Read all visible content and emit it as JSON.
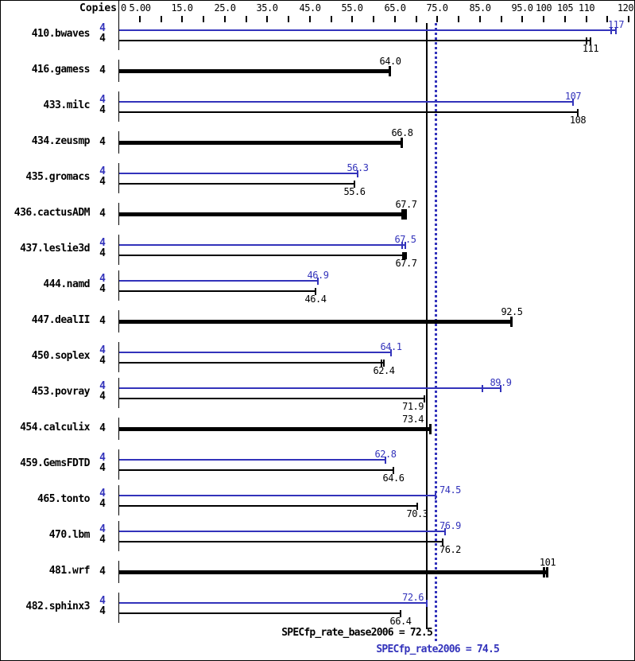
{
  "header": {
    "copies_label": "Copies"
  },
  "axis": {
    "min": 0,
    "max": 120,
    "tick_step": 5,
    "labels": [
      {
        "value": 0,
        "text": "0"
      },
      {
        "value": 5,
        "text": "5.00"
      },
      {
        "value": 15,
        "text": "15.0"
      },
      {
        "value": 25,
        "text": "25.0"
      },
      {
        "value": 35,
        "text": "35.0"
      },
      {
        "value": 45,
        "text": "45.0"
      },
      {
        "value": 55,
        "text": "55.0"
      },
      {
        "value": 65,
        "text": "65.0"
      },
      {
        "value": 75,
        "text": "75.0"
      },
      {
        "value": 85,
        "text": "85.0"
      },
      {
        "value": 95,
        "text": "95.0"
      },
      {
        "value": 100,
        "text": "100"
      },
      {
        "value": 105,
        "text": "105"
      },
      {
        "value": 110,
        "text": "110"
      },
      {
        "value": 120,
        "text": "120"
      }
    ]
  },
  "colors": {
    "peak": "#3333bb",
    "base": "#000000",
    "background": "#ffffff"
  },
  "reference_lines": {
    "base": {
      "value": 72.5,
      "color": "#000000",
      "style": "solid"
    },
    "peak": {
      "value": 74.5,
      "color": "#3333bb",
      "style": "dotted"
    }
  },
  "footer": {
    "base_label": "SPECfp_rate_base2006 = 72.5",
    "peak_label": "SPECfp_rate2006 = 74.5"
  },
  "benchmarks": [
    {
      "name": "410.bwaves",
      "bars": [
        {
          "kind": "peak",
          "copies": "4",
          "value": 117,
          "label": "117",
          "ticks": [
            115.9,
            117
          ],
          "label_align": "center"
        },
        {
          "kind": "base",
          "copies": "4",
          "value": 111,
          "label": "111",
          "ticks": [
            110.1,
            111
          ],
          "label_align": "center"
        }
      ]
    },
    {
      "name": "416.gamess",
      "bars": [
        {
          "kind": "base_only",
          "copies": "4",
          "value": 64.0,
          "label": "64.0",
          "ticks": [
            64.0
          ],
          "label_align": "center"
        }
      ]
    },
    {
      "name": "433.milc",
      "bars": [
        {
          "kind": "peak",
          "copies": "4",
          "value": 107,
          "label": "107",
          "ticks": [
            107
          ],
          "label_align": "center"
        },
        {
          "kind": "base",
          "copies": "4",
          "value": 108,
          "label": "108",
          "ticks": [
            108
          ],
          "label_align": "center"
        }
      ]
    },
    {
      "name": "434.zeusmp",
      "bars": [
        {
          "kind": "base_only",
          "copies": "4",
          "value": 66.8,
          "label": "66.8",
          "ticks": [
            66.8
          ],
          "label_align": "center"
        }
      ]
    },
    {
      "name": "435.gromacs",
      "bars": [
        {
          "kind": "peak",
          "copies": "4",
          "value": 56.3,
          "label": "56.3",
          "ticks": [
            56.3
          ],
          "label_align": "center"
        },
        {
          "kind": "base",
          "copies": "4",
          "value": 55.6,
          "label": "55.6",
          "ticks": [
            55.6
          ],
          "label_align": "center"
        }
      ]
    },
    {
      "name": "436.cactusADM",
      "bars": [
        {
          "kind": "base_only",
          "copies": "4",
          "value": 67.7,
          "label": "67.7",
          "ticks": [
            66.9,
            67.3,
            67.7
          ],
          "label_align": "center"
        }
      ]
    },
    {
      "name": "437.leslie3d",
      "bars": [
        {
          "kind": "peak",
          "copies": "4",
          "value": 67.5,
          "label": "67.5",
          "ticks": [
            66.8,
            67.5
          ],
          "label_align": "center"
        },
        {
          "kind": "base",
          "copies": "4",
          "value": 67.7,
          "label": "67.7",
          "ticks": [
            66.9,
            67.3,
            67.7
          ],
          "label_align": "center"
        }
      ]
    },
    {
      "name": "444.namd",
      "bars": [
        {
          "kind": "peak",
          "copies": "4",
          "value": 46.9,
          "label": "46.9",
          "ticks": [
            46.9
          ],
          "label_align": "center"
        },
        {
          "kind": "base",
          "copies": "4",
          "value": 46.4,
          "label": "46.4",
          "ticks": [
            46.4
          ],
          "label_align": "center"
        }
      ]
    },
    {
      "name": "447.dealII",
      "bars": [
        {
          "kind": "base_only",
          "copies": "4",
          "value": 92.5,
          "label": "92.5",
          "ticks": [
            92.5
          ],
          "label_align": "center"
        }
      ]
    },
    {
      "name": "450.soplex",
      "bars": [
        {
          "kind": "peak",
          "copies": "4",
          "value": 64.1,
          "label": "64.1",
          "ticks": [
            64.1
          ],
          "label_align": "center"
        },
        {
          "kind": "base",
          "copies": "4",
          "value": 62.4,
          "label": "62.4",
          "ticks": [
            61.8,
            62.4
          ],
          "label_align": "center"
        }
      ]
    },
    {
      "name": "453.povray",
      "bars": [
        {
          "kind": "peak",
          "copies": "4",
          "value": 89.9,
          "label": "89.9",
          "ticks": [
            85.6,
            89.9
          ],
          "label_align": "center"
        },
        {
          "kind": "base",
          "copies": "4",
          "value": 71.9,
          "label": "71.9",
          "ticks": [
            71.9
          ],
          "label_align": "right"
        }
      ]
    },
    {
      "name": "454.calculix",
      "bars": [
        {
          "kind": "base_only",
          "copies": "4",
          "value": 73.4,
          "label": "73.4",
          "ticks": [
            73.4
          ],
          "label_align": "right"
        }
      ]
    },
    {
      "name": "459.GemsFDTD",
      "bars": [
        {
          "kind": "peak",
          "copies": "4",
          "value": 62.8,
          "label": "62.8",
          "ticks": [
            62.8
          ],
          "label_align": "center"
        },
        {
          "kind": "base",
          "copies": "4",
          "value": 64.6,
          "label": "64.6",
          "ticks": [
            64.6
          ],
          "label_align": "center"
        }
      ]
    },
    {
      "name": "465.tonto",
      "bars": [
        {
          "kind": "peak",
          "copies": "4",
          "value": 74.5,
          "label": "74.5",
          "ticks": [
            74.5
          ],
          "label_align": "left"
        },
        {
          "kind": "base",
          "copies": "4",
          "value": 70.3,
          "label": "70.3",
          "ticks": [
            70.3
          ],
          "label_align": "center"
        }
      ]
    },
    {
      "name": "470.lbm",
      "bars": [
        {
          "kind": "peak",
          "copies": "4",
          "value": 76.9,
          "label": "76.9",
          "ticks": [
            76.9
          ],
          "label_align": "left"
        },
        {
          "kind": "base",
          "copies": "4",
          "value": 76.2,
          "label": "76.2",
          "ticks": [
            76.2
          ],
          "label_align": "left"
        }
      ]
    },
    {
      "name": "481.wrf",
      "bars": [
        {
          "kind": "base_only",
          "copies": "4",
          "value": 101,
          "label": "101",
          "ticks": [
            100.2,
            101
          ],
          "label_align": "center"
        }
      ]
    },
    {
      "name": "482.sphinx3",
      "bars": [
        {
          "kind": "peak",
          "copies": "4",
          "value": 72.6,
          "label": "72.6",
          "ticks": [
            72.6
          ],
          "label_align": "right"
        },
        {
          "kind": "base",
          "copies": "4",
          "value": 66.4,
          "label": "66.4",
          "ticks": [
            66.4
          ],
          "label_align": "center"
        }
      ]
    }
  ],
  "chart_data": {
    "type": "bar",
    "orientation": "horizontal",
    "title": "",
    "xlabel": "",
    "ylabel": "Copies",
    "xlim": [
      0,
      120
    ],
    "grid": false,
    "legend_position": "none",
    "categories": [
      "410.bwaves",
      "416.gamess",
      "433.milc",
      "434.zeusmp",
      "435.gromacs",
      "436.cactusADM",
      "437.leslie3d",
      "444.namd",
      "447.dealII",
      "450.soplex",
      "453.povray",
      "454.calculix",
      "459.GemsFDTD",
      "465.tonto",
      "470.lbm",
      "481.wrf",
      "482.sphinx3"
    ],
    "copies": [
      4,
      4,
      4,
      4,
      4,
      4,
      4,
      4,
      4,
      4,
      4,
      4,
      4,
      4,
      4,
      4,
      4
    ],
    "series": [
      {
        "name": "SPECfp_rate2006 (peak)",
        "color": "#3333bb",
        "values": [
          117,
          null,
          107,
          null,
          56.3,
          null,
          67.5,
          46.9,
          null,
          64.1,
          89.9,
          null,
          62.8,
          74.5,
          76.9,
          null,
          72.6
        ]
      },
      {
        "name": "SPECfp_rate_base2006 (base)",
        "color": "#000000",
        "values": [
          111,
          64.0,
          108,
          66.8,
          55.6,
          67.7,
          67.7,
          46.4,
          92.5,
          62.4,
          71.9,
          73.4,
          64.6,
          70.3,
          76.2,
          101,
          66.4
        ]
      }
    ],
    "reference_lines": [
      {
        "label": "SPECfp_rate_base2006 = 72.5",
        "value": 72.5,
        "style": "solid",
        "color": "#000000"
      },
      {
        "label": "SPECfp_rate2006 = 74.5",
        "value": 74.5,
        "style": "dotted",
        "color": "#3333bb"
      }
    ]
  }
}
